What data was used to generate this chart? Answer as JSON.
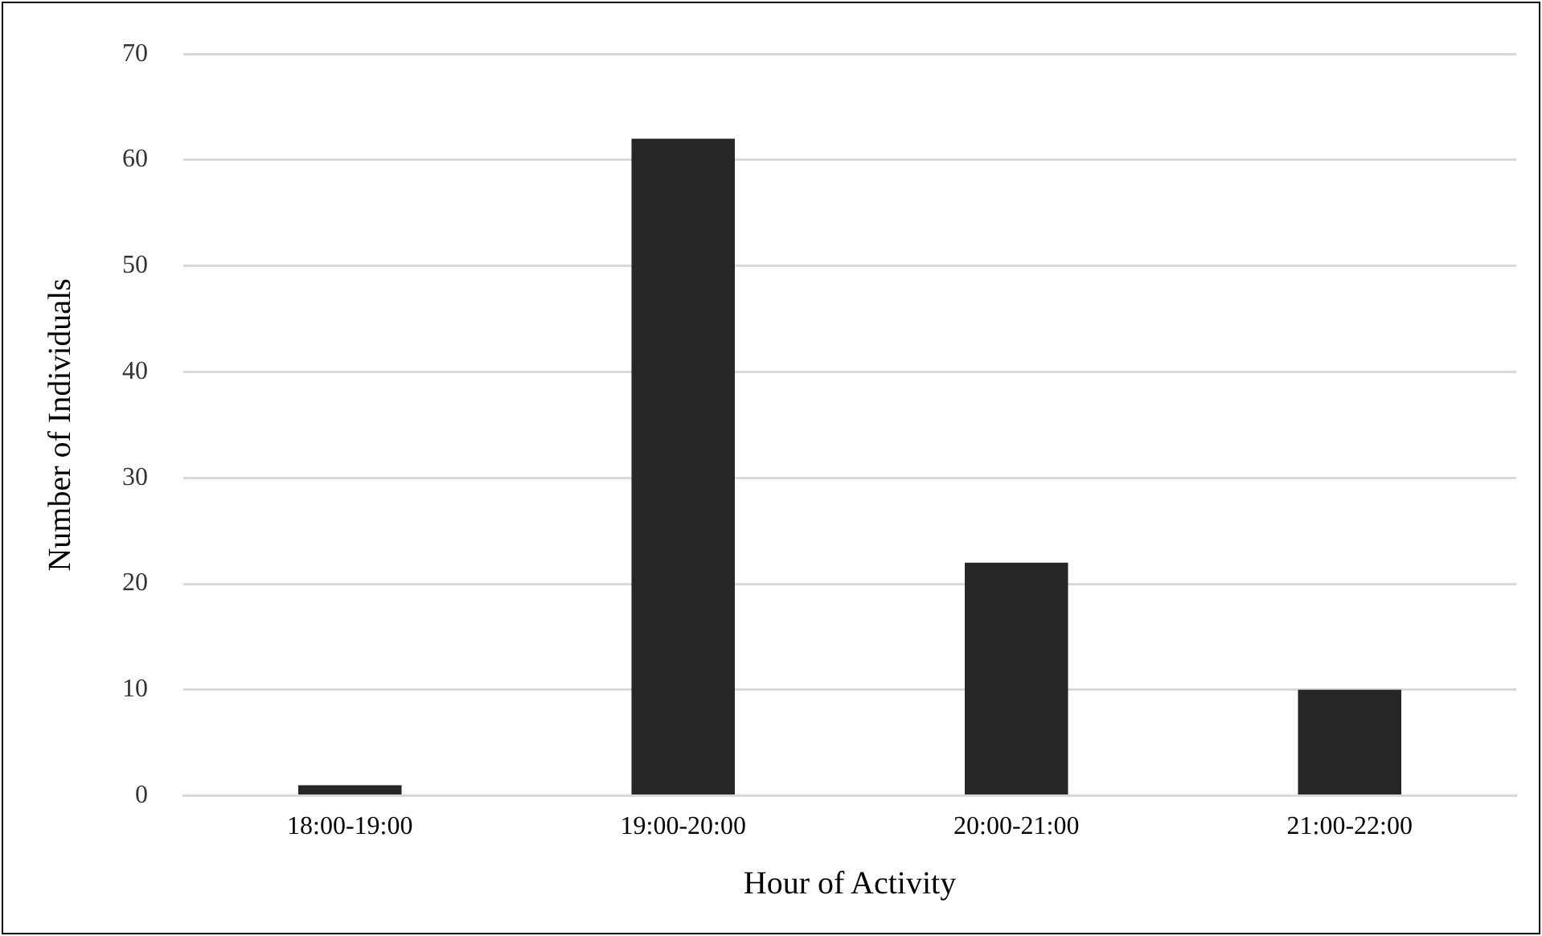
{
  "chart_data": {
    "type": "bar",
    "xlabel": "Hour of Activity",
    "ylabel": "Number of Individuals",
    "categories": [
      "18:00-19:00",
      "19:00-20:00",
      "20:00-21:00",
      "21:00-22:00"
    ],
    "values": [
      1,
      62,
      22,
      10
    ],
    "color": "#262626",
    "ylim": [
      0,
      70
    ],
    "yticks": [
      0,
      10,
      20,
      30,
      40,
      50,
      60,
      70
    ],
    "grid": "y",
    "legend": false
  }
}
